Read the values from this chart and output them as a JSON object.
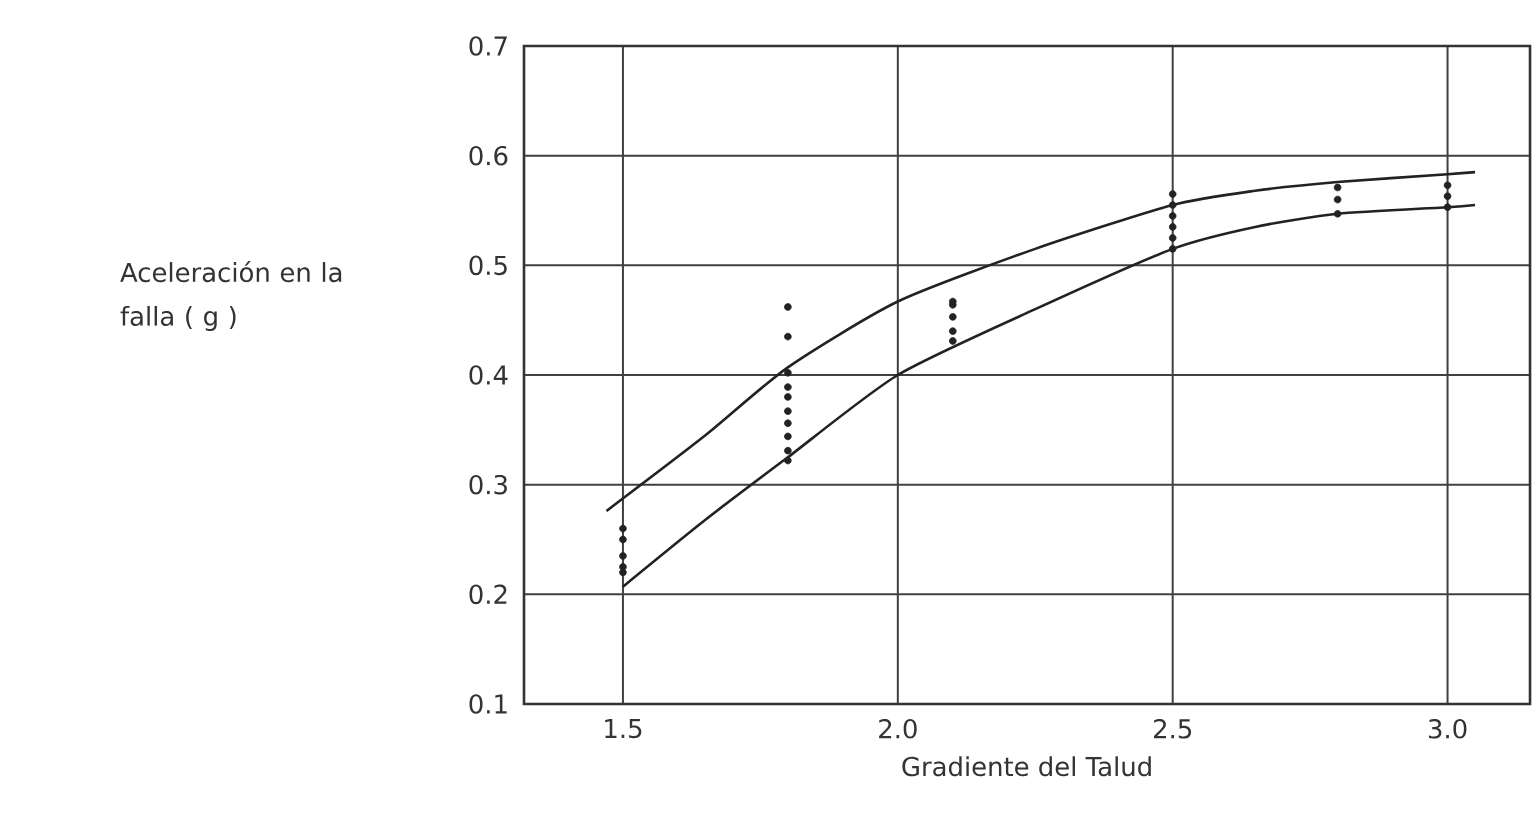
{
  "chart_data": {
    "type": "line",
    "xlabel": "Gradiente del Talud",
    "ylabel": "Aceleración en la falla ( g )",
    "xlim": [
      1.32,
      3.15
    ],
    "ylim": [
      0.1,
      0.7
    ],
    "xticks": [
      {
        "value": 1.5,
        "label": "1.5"
      },
      {
        "value": 2.0,
        "label": "2.0"
      },
      {
        "value": 2.5,
        "label": "2.5"
      },
      {
        "value": 3.0,
        "label": "3.0"
      }
    ],
    "yticks": [
      {
        "value": 0.1,
        "label": "0.1"
      },
      {
        "value": 0.2,
        "label": "0.2"
      },
      {
        "value": 0.3,
        "label": "0.3"
      },
      {
        "value": 0.4,
        "label": "0.4"
      },
      {
        "value": 0.5,
        "label": "0.5"
      },
      {
        "value": 0.6,
        "label": "0.6"
      },
      {
        "value": 0.7,
        "label": "0.7"
      }
    ],
    "grid": true,
    "series": [
      {
        "color": "#222222",
        "marker": "none",
        "x": [
          1.47,
          1.65,
          1.8,
          2.0,
          2.25,
          2.5,
          2.65,
          2.8,
          3.0,
          3.05
        ],
        "values": [
          0.276,
          0.345,
          0.407,
          0.467,
          0.515,
          0.555,
          0.568,
          0.576,
          0.583,
          0.585
        ]
      },
      {
        "color": "#222222",
        "marker": "none",
        "x": [
          1.5,
          1.65,
          1.8,
          2.0,
          2.25,
          2.5,
          2.65,
          2.8,
          3.0,
          3.05
        ],
        "values": [
          0.207,
          0.268,
          0.325,
          0.4,
          0.46,
          0.515,
          0.535,
          0.547,
          0.553,
          0.555
        ]
      },
      {
        "type": "scatter",
        "color": "#222222",
        "marker": "circle",
        "x": [
          1.5,
          1.5,
          1.5,
          1.5,
          1.5,
          1.8,
          1.8,
          1.8,
          1.8,
          1.8,
          1.8,
          1.8,
          1.8,
          1.8,
          1.8,
          2.1,
          2.1,
          2.1,
          2.1,
          2.1,
          2.5,
          2.5,
          2.5,
          2.5,
          2.5,
          2.5,
          2.8,
          2.8,
          2.8,
          3.0,
          3.0,
          3.0
        ],
        "values": [
          0.26,
          0.25,
          0.235,
          0.225,
          0.22,
          0.462,
          0.435,
          0.402,
          0.389,
          0.38,
          0.367,
          0.356,
          0.344,
          0.331,
          0.322,
          0.467,
          0.464,
          0.453,
          0.44,
          0.431,
          0.565,
          0.555,
          0.545,
          0.535,
          0.525,
          0.515,
          0.571,
          0.56,
          0.547,
          0.573,
          0.563,
          0.553
        ]
      }
    ]
  }
}
